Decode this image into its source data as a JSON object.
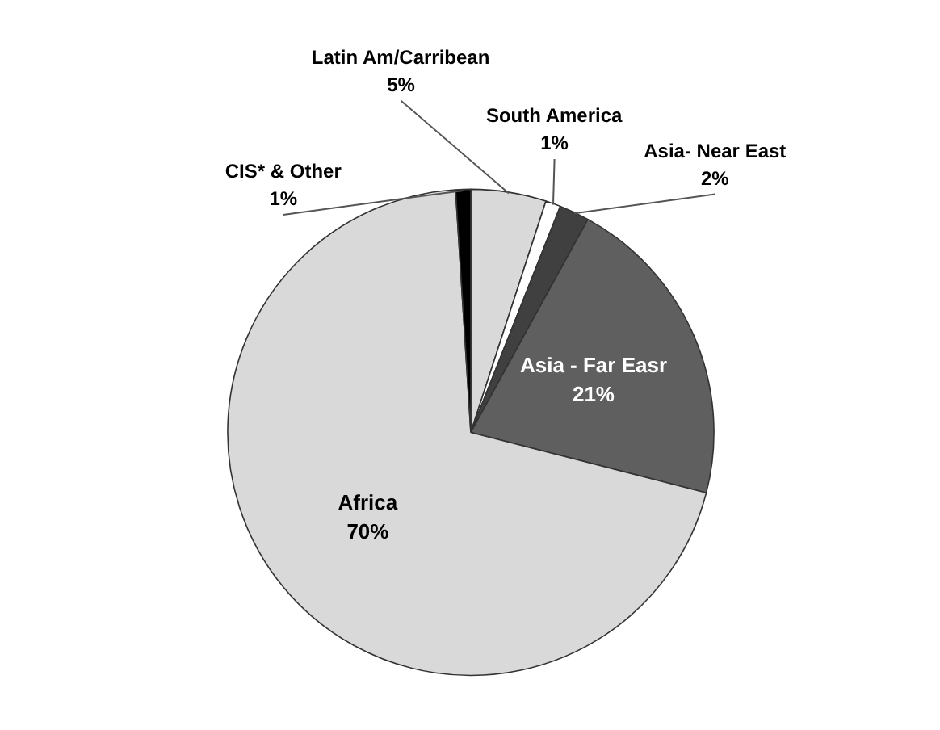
{
  "chart_data": {
    "type": "pie",
    "categories": [
      "Latin Am/Carribean",
      "South America",
      "Asia- Near East",
      "Asia - Far Easr",
      "Africa",
      "CIS* & Other"
    ],
    "values": [
      5,
      1,
      2,
      21,
      70,
      1
    ],
    "value_labels": [
      "5%",
      "1%",
      "2%",
      "21%",
      "70%",
      "1%"
    ],
    "colors": [
      "#d9d9d9",
      "#ffffff",
      "#404040",
      "#5f5f5f",
      "#d9d9d9",
      "#000000"
    ]
  }
}
